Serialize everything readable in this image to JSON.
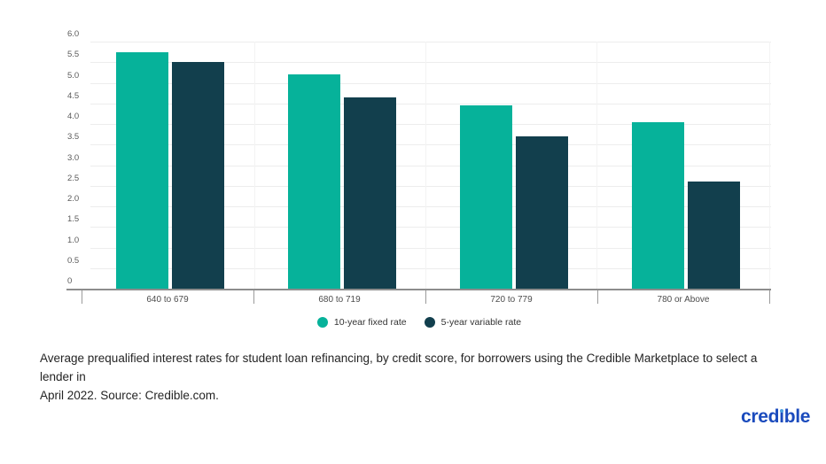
{
  "chart_data": {
    "type": "bar",
    "categories": [
      "640 to 679",
      "680 to 719",
      "720 to 779",
      "780 or Above"
    ],
    "series": [
      {
        "name": "10-year fixed rate",
        "color": "#06b29a",
        "values": [
          5.75,
          5.2,
          4.45,
          4.05
        ]
      },
      {
        "name": "5-year variable rate",
        "color": "#123f4d",
        "values": [
          5.5,
          4.65,
          3.7,
          2.6
        ]
      }
    ],
    "title": "",
    "xlabel": "",
    "ylabel": "",
    "ylim": [
      0,
      6.0
    ],
    "ytick_step": 0.5,
    "ytick_labels_top_down": [
      "6.0",
      "5.5",
      "5.0",
      "4.5",
      "4.0",
      "3.5",
      "3.0",
      "2.5",
      "2.0",
      "1.5",
      "1.0",
      "0.5",
      "0"
    ],
    "grid": true,
    "legend_position": "bottom"
  },
  "caption": {
    "line1": "Average prequalified interest rates for student loan refinancing, by credit score, for borrowers using the Credible Marketplace to select a lender in",
    "line2": "April 2022. Source: Credible.com."
  },
  "logo": {
    "text": "credible",
    "pre": "cred",
    "i_char": "ı",
    "post": "ble",
    "color": "#1b4bbd",
    "dot_color": "#4aa0e0"
  }
}
